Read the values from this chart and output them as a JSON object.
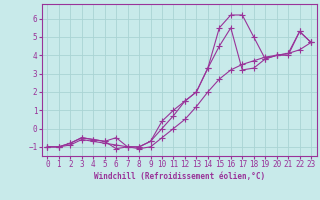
{
  "xlabel": "Windchill (Refroidissement éolien,°C)",
  "xlim": [
    -0.5,
    23.5
  ],
  "ylim": [
    -1.5,
    6.8
  ],
  "yticks": [
    -1,
    0,
    1,
    2,
    3,
    4,
    5,
    6
  ],
  "xticks": [
    0,
    1,
    2,
    3,
    4,
    5,
    6,
    7,
    8,
    9,
    10,
    11,
    12,
    13,
    14,
    15,
    16,
    17,
    18,
    19,
    20,
    21,
    22,
    23
  ],
  "bg_color": "#c8eaea",
  "grid_color": "#aad4d4",
  "line_color": "#993399",
  "line1_x": [
    0,
    1,
    2,
    3,
    4,
    5,
    6,
    7,
    8,
    9,
    10,
    11,
    12,
    13,
    14,
    15,
    16,
    17,
    18,
    19,
    20,
    21,
    22,
    23
  ],
  "line1_y": [
    -1,
    -1,
    -0.8,
    -0.5,
    -0.6,
    -0.7,
    -1.1,
    -1.0,
    -1.0,
    -0.7,
    0.0,
    0.7,
    1.5,
    2.0,
    3.3,
    5.5,
    6.2,
    6.2,
    5.0,
    3.8,
    4.0,
    4.0,
    5.3,
    4.7
  ],
  "line2_x": [
    0,
    1,
    2,
    3,
    4,
    5,
    6,
    7,
    8,
    9,
    10,
    11,
    12,
    13,
    14,
    15,
    16,
    17,
    18,
    19,
    20,
    21,
    22,
    23
  ],
  "line2_y": [
    -1,
    -1,
    -0.8,
    -0.5,
    -0.6,
    -0.7,
    -0.5,
    -1.0,
    -1.0,
    -0.7,
    0.4,
    1.0,
    1.5,
    2.0,
    3.3,
    4.5,
    5.5,
    3.2,
    3.3,
    3.8,
    4.0,
    4.1,
    5.3,
    4.7
  ],
  "line3_x": [
    0,
    1,
    2,
    3,
    4,
    5,
    6,
    7,
    8,
    9,
    10,
    11,
    12,
    13,
    14,
    15,
    16,
    17,
    18,
    19,
    20,
    21,
    22,
    23
  ],
  "line3_y": [
    -1,
    -1,
    -0.9,
    -0.6,
    -0.7,
    -0.8,
    -0.9,
    -1.0,
    -1.1,
    -1.0,
    -0.5,
    0.0,
    0.5,
    1.2,
    2.0,
    2.7,
    3.2,
    3.5,
    3.7,
    3.9,
    4.0,
    4.1,
    4.3,
    4.7
  ]
}
